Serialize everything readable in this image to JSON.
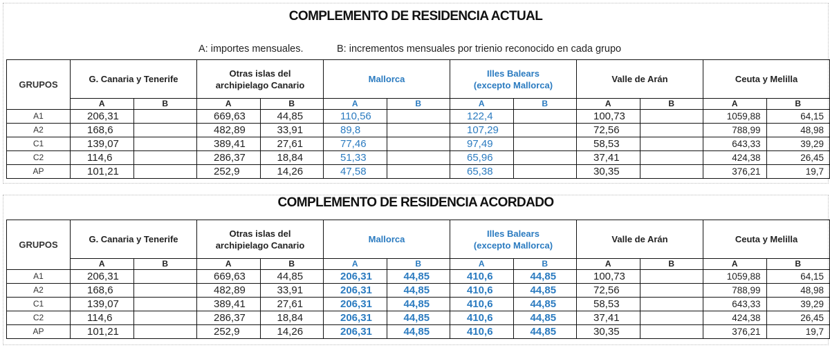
{
  "sections": [
    {
      "title": "COMPLEMENTO DE RESIDENCIA ACTUAL",
      "note_a": "A: importes mensuales.",
      "note_b": "B: incrementos mensuales por trienio reconocido en cada grupo",
      "table": {
        "corner": "GRUPOS",
        "groups": [
          {
            "lines": [
              "G. Canaria y Tenerife"
            ],
            "color": "#222222"
          },
          {
            "lines": [
              "Otras islas del",
              "archipielago Canario"
            ],
            "color": "#222222"
          },
          {
            "lines": [
              "Mallorca"
            ],
            "color": "#2b7bc0"
          },
          {
            "lines": [
              "Illes Balears",
              "(excepto Mallorca)"
            ],
            "color": "#2b7bc0"
          },
          {
            "lines": [
              "Valle de Arán"
            ],
            "color": "#222222"
          },
          {
            "lines": [
              "Ceuta y Melilla"
            ],
            "color": "#222222"
          }
        ],
        "subheaders": [
          "A",
          "B",
          "A",
          "B",
          "A",
          "B",
          "A",
          "B",
          "A",
          "B",
          "A",
          "B"
        ],
        "rows": [
          {
            "label": "A1",
            "cells": [
              "206,31",
              null,
              "669,63",
              "44,85",
              "110,56",
              null,
              "122,4",
              null,
              "100,73",
              null,
              "1059,88",
              "64,15"
            ]
          },
          {
            "label": "A2",
            "cells": [
              "168,6",
              null,
              "482,89",
              "33,91",
              "89,8",
              null,
              "107,29",
              null,
              "72,56",
              null,
              "788,99",
              "48,98"
            ]
          },
          {
            "label": "C1",
            "cells": [
              "139,07",
              null,
              "389,41",
              "27,61",
              "77,46",
              null,
              "97,49",
              null,
              "58,53",
              null,
              "643,33",
              "39,29"
            ]
          },
          {
            "label": "C2",
            "cells": [
              "114,6",
              null,
              "286,37",
              "18,84",
              "51,33",
              null,
              "65,96",
              null,
              "37,41",
              null,
              "424,38",
              "26,45"
            ]
          },
          {
            "label": "AP",
            "cells": [
              "101,21",
              null,
              "252,9",
              "14,26",
              "47,58",
              null,
              "65,38",
              null,
              "30,35",
              null,
              "376,21",
              "19,7"
            ]
          }
        ]
      }
    },
    {
      "title": "COMPLEMENTO DE RESIDENCIA ACORDADO",
      "table": {
        "corner": "GRUPOS",
        "groups": [
          {
            "lines": [
              "G. Canaria y Tenerife"
            ],
            "color": "#222222"
          },
          {
            "lines": [
              "Otras islas del",
              "archipielago Canario"
            ],
            "color": "#222222"
          },
          {
            "lines": [
              "Mallorca"
            ],
            "color": "#2b7bc0"
          },
          {
            "lines": [
              "Illes Balears",
              "(excepto Mallorca)"
            ],
            "color": "#2b7bc0"
          },
          {
            "lines": [
              "Valle de Arán"
            ],
            "color": "#222222"
          },
          {
            "lines": [
              "Ceuta y Melilla"
            ],
            "color": "#222222"
          }
        ],
        "subheaders": [
          "A",
          "B",
          "A",
          "B",
          "A",
          "B",
          "A",
          "B",
          "A",
          "B",
          "A",
          "B"
        ],
        "rows": [
          {
            "label": "A1",
            "cells": [
              "206,31",
              null,
              "669,63",
              "44,85",
              "206,31",
              "44,85",
              "410,6",
              "44,85",
              "100,73",
              null,
              "1059,88",
              "64,15"
            ]
          },
          {
            "label": "A2",
            "cells": [
              "168,6",
              null,
              "482,89",
              "33,91",
              "206,31",
              "44,85",
              "410,6",
              "44,85",
              "72,56",
              null,
              "788,99",
              "48,98"
            ]
          },
          {
            "label": "C1",
            "cells": [
              "139,07",
              null,
              "389,41",
              "27,61",
              "206,31",
              "44,85",
              "410,6",
              "44,85",
              "58,53",
              null,
              "643,33",
              "39,29"
            ]
          },
          {
            "label": "C2",
            "cells": [
              "114,6",
              null,
              "286,37",
              "18,84",
              "206,31",
              "44,85",
              "410,6",
              "44,85",
              "37,41",
              null,
              "424,38",
              "26,45"
            ]
          },
          {
            "label": "AP",
            "cells": [
              "101,21",
              null,
              "252,9",
              "14,26",
              "206,31",
              "44,85",
              "410,6",
              "44,85",
              "30,35",
              null,
              "376,21",
              "19,7"
            ]
          }
        ]
      }
    }
  ]
}
